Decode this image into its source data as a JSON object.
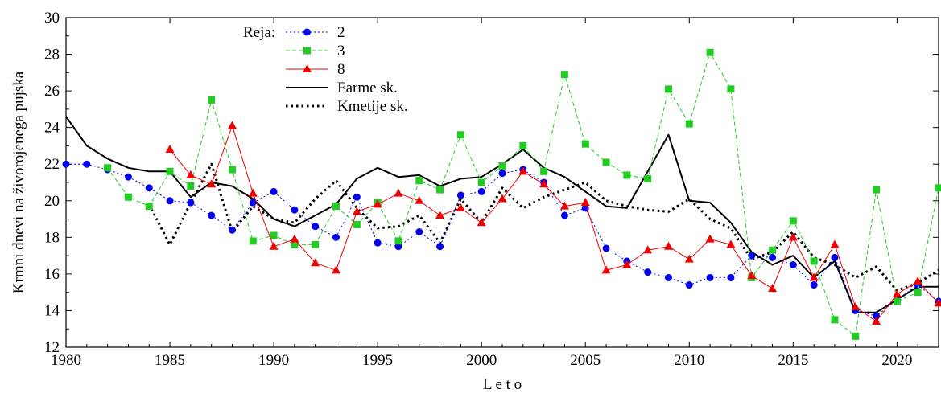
{
  "chart_data": {
    "type": "line",
    "xlabel": "L e t o",
    "ylabel": "Krmni dnevi na živorojenega pujska",
    "xlim": [
      1980,
      2022
    ],
    "ylim": [
      12,
      30
    ],
    "xticks": [
      1980,
      1985,
      1990,
      1995,
      2000,
      2005,
      2010,
      2015,
      2020
    ],
    "yticks": [
      12,
      14,
      16,
      18,
      20,
      22,
      24,
      26,
      28,
      30
    ],
    "grid": false,
    "legend": {
      "title": "Reja:",
      "position": "top-left"
    },
    "series": [
      {
        "name": "2",
        "color": "#0000ee",
        "line": "dotted",
        "marker": "circle",
        "x": [
          1980,
          1981,
          1982,
          1983,
          1984,
          1985,
          1986,
          1987,
          1988,
          1989,
          1990,
          1991,
          1992,
          1993,
          1994,
          1995,
          1996,
          1997,
          1998,
          1999,
          2000,
          2001,
          2002,
          2003,
          2004,
          2005,
          2006,
          2007,
          2008,
          2009,
          2010,
          2011,
          2012,
          2013,
          2014,
          2015,
          2016,
          2017,
          2018,
          2019,
          2020,
          2021,
          2022
        ],
        "values": [
          22.0,
          22.0,
          21.7,
          21.3,
          20.7,
          20.0,
          19.9,
          19.2,
          18.4,
          19.9,
          20.5,
          19.5,
          18.6,
          18.0,
          20.2,
          17.7,
          17.5,
          18.3,
          17.5,
          20.3,
          20.5,
          21.5,
          21.7,
          21.0,
          19.2,
          19.6,
          17.4,
          16.7,
          16.1,
          15.8,
          15.4,
          15.8,
          15.8,
          17.0,
          16.9,
          16.5,
          15.4,
          16.9,
          14.0,
          13.7,
          14.6,
          15.4,
          14.5
        ]
      },
      {
        "name": "3",
        "color": "#22cc22",
        "line": "dashed",
        "marker": "square",
        "x": [
          1982,
          1983,
          1984,
          1985,
          1986,
          1987,
          1988,
          1989,
          1990,
          1991,
          1992,
          1993,
          1994,
          1995,
          1996,
          1997,
          1998,
          1999,
          2000,
          2001,
          2002,
          2003,
          2004,
          2005,
          2006,
          2007,
          2008,
          2009,
          2010,
          2011,
          2012,
          2013,
          2014,
          2015,
          2016,
          2017,
          2018,
          2019,
          2020,
          2021,
          2022
        ],
        "values": [
          21.8,
          20.2,
          19.7,
          21.6,
          20.8,
          25.5,
          21.7,
          17.8,
          18.1,
          17.6,
          17.6,
          19.7,
          18.7,
          19.9,
          17.8,
          21.1,
          20.6,
          23.6,
          21.0,
          21.9,
          23.0,
          21.6,
          26.9,
          23.1,
          22.1,
          21.4,
          21.2,
          26.1,
          24.2,
          28.1,
          26.1,
          15.8,
          17.3,
          18.9,
          16.7,
          13.5,
          12.6,
          20.6,
          14.5,
          15.0,
          20.7
        ]
      },
      {
        "name": "8",
        "color": "#ee0000",
        "line": "solid-thin",
        "marker": "triangle",
        "x": [
          1985,
          1986,
          1987,
          1988,
          1989,
          1990,
          1991,
          1992,
          1993,
          1994,
          1995,
          1996,
          1997,
          1998,
          1999,
          2000,
          2001,
          2002,
          2003,
          2004,
          2005,
          2006,
          2007,
          2008,
          2009,
          2010,
          2011,
          2012,
          2013,
          2014,
          2015,
          2016,
          2017,
          2018,
          2019,
          2020,
          2021,
          2022
        ],
        "values": [
          22.8,
          21.4,
          20.9,
          24.1,
          20.4,
          17.5,
          17.9,
          16.6,
          16.2,
          19.4,
          19.8,
          20.4,
          20.0,
          19.2,
          19.6,
          18.8,
          20.1,
          21.6,
          20.9,
          19.7,
          19.9,
          16.2,
          16.5,
          17.3,
          17.5,
          16.8,
          17.9,
          17.6,
          15.9,
          15.2,
          18.0,
          15.8,
          17.6,
          14.2,
          13.4,
          14.9,
          15.6,
          14.4
        ]
      },
      {
        "name": "Farme sk.",
        "color": "#000000",
        "line": "solid",
        "marker": "none",
        "x": [
          1980,
          1981,
          1982,
          1983,
          1984,
          1985,
          1986,
          1987,
          1988,
          1989,
          1990,
          1991,
          1992,
          1993,
          1994,
          1995,
          1996,
          1997,
          1998,
          1999,
          2000,
          2001,
          2002,
          2003,
          2004,
          2005,
          2006,
          2007,
          2008,
          2009,
          2010,
          2011,
          2012,
          2013,
          2014,
          2015,
          2016,
          2017,
          2018,
          2019,
          2020,
          2021,
          2022
        ],
        "values": [
          24.6,
          23.0,
          22.3,
          21.8,
          21.6,
          21.6,
          20.2,
          21.0,
          20.8,
          20.1,
          19.0,
          18.6,
          19.2,
          19.8,
          21.2,
          21.8,
          21.3,
          21.4,
          20.8,
          21.2,
          21.3,
          22.0,
          22.8,
          21.8,
          21.3,
          20.5,
          19.7,
          19.6,
          21.6,
          23.6,
          20.0,
          19.9,
          18.8,
          17.2,
          16.5,
          17.0,
          15.8,
          16.7,
          13.9,
          13.9,
          14.6,
          15.3,
          15.3
        ]
      },
      {
        "name": "Kmetije sk.",
        "color": "#000000",
        "line": "dotted-thick",
        "marker": "none",
        "x": [
          1980,
          1981,
          1982,
          1983,
          1984,
          1985,
          1986,
          1987,
          1988,
          1989,
          1990,
          1991,
          1992,
          1993,
          1994,
          1995,
          1996,
          1997,
          1998,
          1999,
          2000,
          2001,
          2002,
          2003,
          2004,
          2005,
          2006,
          2007,
          2008,
          2009,
          2010,
          2011,
          2012,
          2013,
          2014,
          2015,
          2016,
          2017,
          2018,
          2019,
          2020,
          2021,
          2022
        ],
        "values": [
          null,
          null,
          null,
          null,
          19.8,
          17.6,
          19.9,
          22.0,
          18.3,
          19.7,
          19.0,
          18.8,
          20.1,
          21.1,
          19.6,
          18.5,
          18.6,
          19.2,
          17.7,
          20.1,
          18.8,
          20.7,
          19.6,
          20.2,
          20.6,
          21.0,
          20.0,
          19.7,
          19.5,
          19.4,
          20.1,
          19.0,
          18.5,
          16.8,
          17.2,
          18.3,
          16.9,
          16.5,
          15.8,
          16.4,
          15.1,
          15.5,
          16.2
        ]
      }
    ]
  }
}
